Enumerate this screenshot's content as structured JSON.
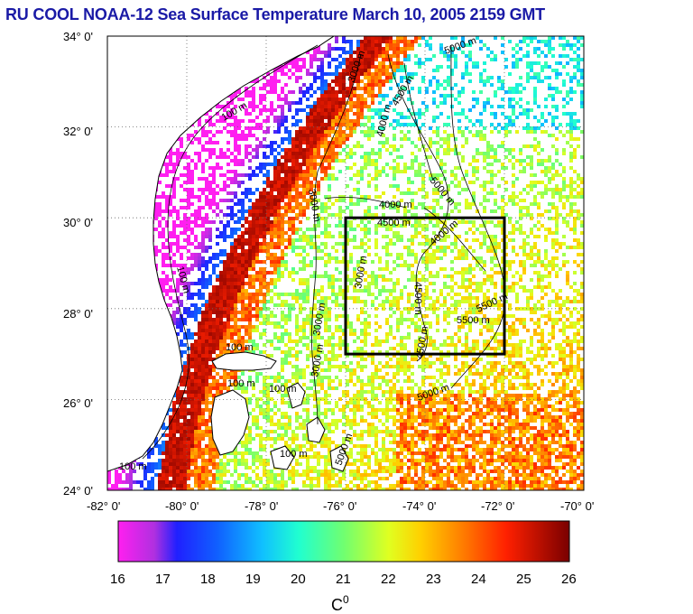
{
  "title": "RU COOL  NOAA-12 Sea Surface Temperature March 10, 2005 2159 GMT",
  "axes": {
    "lat_labels": [
      "34° 0'",
      "32° 0'",
      "30° 0'",
      "28° 0'",
      "26° 0'",
      "24° 0'"
    ],
    "lon_labels": [
      "-82° 0'",
      "-80° 0'",
      "-78° 0'",
      "-76° 0'",
      "-74° 0'",
      "-72° 0'",
      "-70° 0'"
    ],
    "lat_range": [
      24,
      34
    ],
    "lon_range": [
      -82,
      -70
    ]
  },
  "colorbar": {
    "ticks": [
      "16",
      "17",
      "18",
      "19",
      "20",
      "21",
      "22",
      "23",
      "24",
      "25",
      "26"
    ],
    "unit": "C",
    "unit_sup": "0",
    "range": [
      16,
      26
    ]
  },
  "isobaths": [
    {
      "label": "100 m"
    },
    {
      "label": "3000 m"
    },
    {
      "label": "4000 m"
    },
    {
      "label": "4500 m"
    },
    {
      "label": "5000 m"
    },
    {
      "label": "5500 m"
    }
  ],
  "study_box": {
    "lon": [
      -76,
      -72
    ],
    "lat": [
      27,
      30
    ]
  },
  "colors": {
    "title": "#1a1aa6",
    "land": "#ffffff",
    "frame": "#000000"
  }
}
